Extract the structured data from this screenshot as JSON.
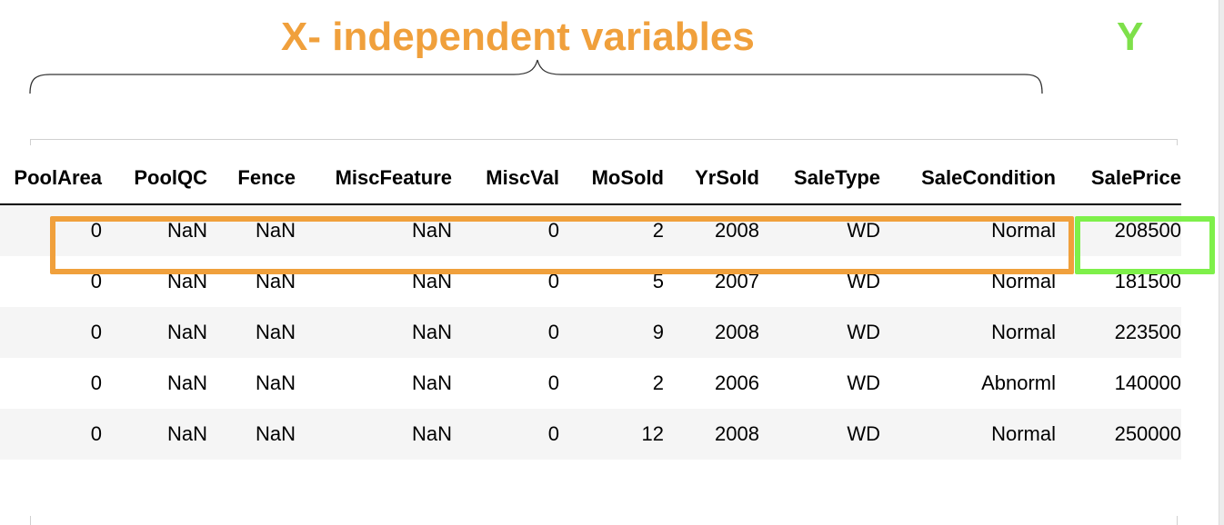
{
  "annotations": {
    "x_label": "X- independent variables",
    "y_label": "Y",
    "x_color": "#F0A03C",
    "y_color": "#7EF04A"
  },
  "table": {
    "columns": [
      "PoolArea",
      "PoolQC",
      "Fence",
      "MiscFeature",
      "MiscVal",
      "MoSold",
      "YrSold",
      "SaleType",
      "SaleCondition",
      "SalePrice"
    ],
    "rows": [
      [
        "0",
        "NaN",
        "NaN",
        "NaN",
        "0",
        "2",
        "2008",
        "WD",
        "Normal",
        "208500"
      ],
      [
        "0",
        "NaN",
        "NaN",
        "NaN",
        "0",
        "5",
        "2007",
        "WD",
        "Normal",
        "181500"
      ],
      [
        "0",
        "NaN",
        "NaN",
        "NaN",
        "0",
        "9",
        "2008",
        "WD",
        "Normal",
        "223500"
      ],
      [
        "0",
        "NaN",
        "NaN",
        "NaN",
        "0",
        "2",
        "2006",
        "WD",
        "Abnorml",
        "140000"
      ],
      [
        "0",
        "NaN",
        "NaN",
        "NaN",
        "0",
        "12",
        "2008",
        "WD",
        "Normal",
        "250000"
      ]
    ]
  }
}
